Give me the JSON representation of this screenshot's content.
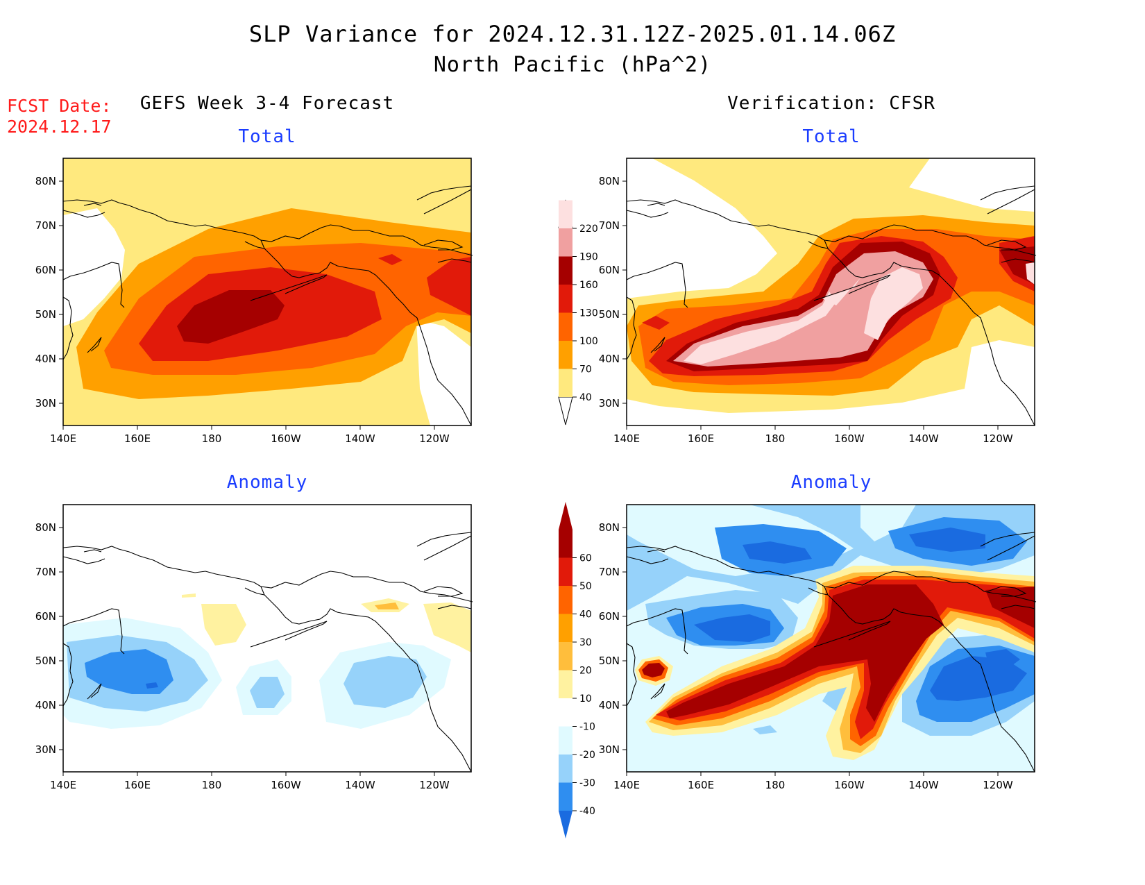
{
  "header": {
    "title": "SLP Variance for 2024.12.31.12Z-2025.01.14.06Z",
    "subtitle": "North Pacific (hPa^2)",
    "fcst_label": "FCST Date:",
    "fcst_date": "2024.12.17"
  },
  "columns": {
    "left_title": "GEFS Week 3-4 Forecast",
    "right_title": "Verification: CFSR"
  },
  "panels": [
    {
      "id": "fcst-total",
      "label": "Total"
    },
    {
      "id": "verif-total",
      "label": "Total"
    },
    {
      "id": "fcst-anomaly",
      "label": "Anomaly"
    },
    {
      "id": "verif-anomaly",
      "label": "Anomaly"
    }
  ],
  "axes": {
    "lon_ticks": [
      "140E",
      "160E",
      "180",
      "160W",
      "140W",
      "120W"
    ],
    "lat_ticks": [
      "30N",
      "40N",
      "50N",
      "60N",
      "70N",
      "80N"
    ]
  },
  "colorbars": {
    "total": {
      "labels": [
        "40",
        "70",
        "100",
        "130",
        "160",
        "190",
        "220"
      ],
      "colors": [
        "#ffe97e",
        "#ffa000",
        "#ff6400",
        "#e11a0a",
        "#a50000",
        "#f0a0a0",
        "#fde0e0"
      ]
    },
    "anomaly": {
      "labels": [
        "-40",
        "-30",
        "-20",
        "-10",
        "10",
        "20",
        "30",
        "40",
        "50",
        "60"
      ],
      "colors": [
        "#1a6be0",
        "#2f8ef0",
        "#96d2fa",
        "#e0faff",
        "#ffffff",
        "#fff2a0",
        "#ffbe3c",
        "#ffa000",
        "#ff6400",
        "#e11a0a",
        "#a50000"
      ]
    }
  },
  "palette": {
    "yellow": "#ffe97e",
    "orange": "#ffa000",
    "dorange": "#ff6400",
    "red": "#e11a0a",
    "dred": "#a50000",
    "pink": "#f0a0a0",
    "lpink": "#fde0e0",
    "b4": "#1a6be0",
    "b3": "#2f8ef0",
    "b2": "#96d2fa",
    "b1": "#e0faff"
  }
}
